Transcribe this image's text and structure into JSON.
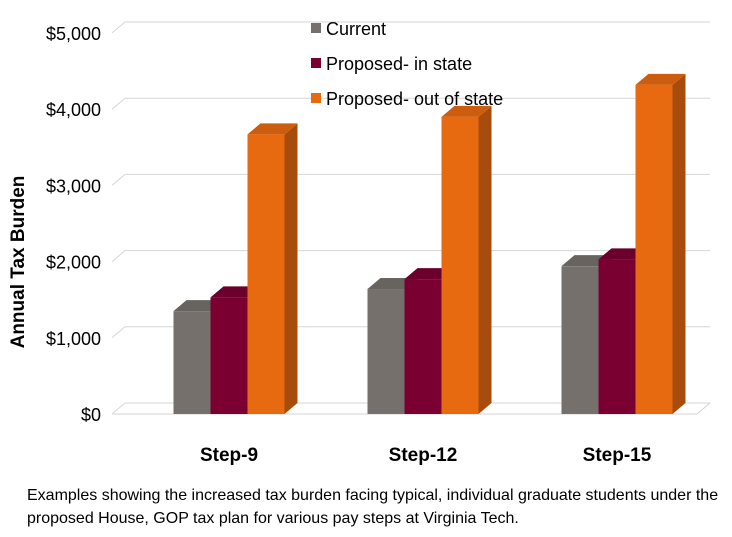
{
  "chart_data": {
    "type": "bar",
    "title": "",
    "xlabel": "",
    "ylabel": "Annual Tax Burden",
    "categories": [
      "Step-9",
      "Step-12",
      "Step-15"
    ],
    "series": [
      {
        "name": "Current",
        "color": "#75706c",
        "values": [
          1350,
          1640,
          1940
        ]
      },
      {
        "name": "Proposed- in state",
        "color": "#7a0032",
        "values": [
          1530,
          1770,
          2030
        ]
      },
      {
        "name": "Proposed- out of state",
        "color": "#e86a10",
        "values": [
          3670,
          3900,
          4320
        ]
      }
    ],
    "ylim": [
      0,
      5000
    ],
    "yticks": [
      0,
      1000,
      2000,
      3000,
      4000,
      5000
    ],
    "ytick_labels": [
      "$0",
      "$1,000",
      "$2,000",
      "$3,000",
      "$4,000",
      "$5,000"
    ],
    "grid": true,
    "legend": "top-center",
    "style": "3d-column"
  },
  "caption": "Examples showing the increased tax burden facing typical, individual graduate students under the proposed House, GOP tax plan for various pay steps at Virginia Tech."
}
